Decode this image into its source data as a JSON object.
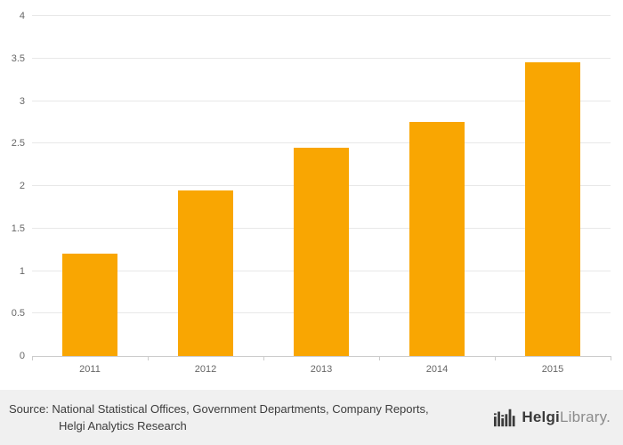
{
  "chart_data": {
    "type": "bar",
    "categories": [
      "2011",
      "2012",
      "2013",
      "2014",
      "2015"
    ],
    "values": [
      1.2,
      1.95,
      2.45,
      2.75,
      3.46
    ],
    "title": "",
    "xlabel": "",
    "ylabel": "",
    "ylim": [
      0,
      4
    ],
    "yticks": [
      "0",
      "0.5",
      "1",
      "1.5",
      "2",
      "2.5",
      "3",
      "3.5",
      "4"
    ],
    "bar_color": "#F9A602",
    "grid": true,
    "legend": "none"
  },
  "footer": {
    "source_line1": "Source: National Statistical Offices, Government Departments, Company Reports,",
    "source_line2": "Helgi Analytics Research",
    "logo_text_bold": "Helgi",
    "logo_text_regular": "Library.",
    "logo_icon": "bar-chart-icon",
    "background_color": "#f0f0f0"
  }
}
